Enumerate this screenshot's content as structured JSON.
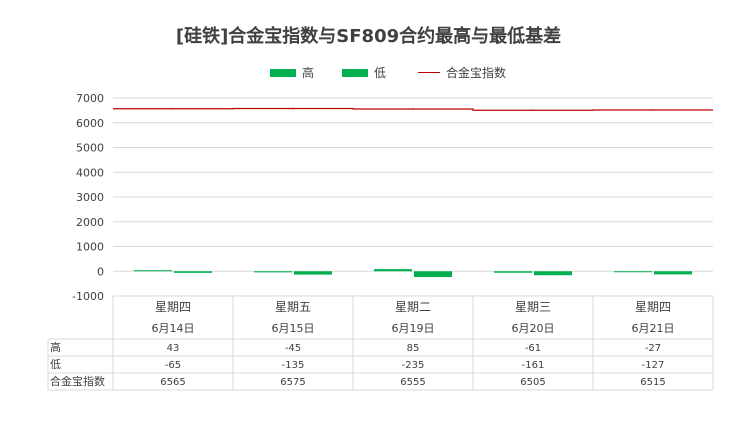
{
  "chart_data": {
    "type": "bar",
    "title": "[硅铁]合金宝指数与SF809合约最高与最低基差",
    "categories": [
      {
        "weekday": "星期四",
        "date": "6月14日"
      },
      {
        "weekday": "星期五",
        "date": "6月15日"
      },
      {
        "weekday": "星期二",
        "date": "6月19日"
      },
      {
        "weekday": "星期三",
        "date": "6月20日"
      },
      {
        "weekday": "星期四",
        "date": "6月21日"
      }
    ],
    "series": [
      {
        "name": "高",
        "type": "bar",
        "color": "#00b050",
        "values": [
          43,
          -45,
          85,
          -61,
          -27
        ]
      },
      {
        "name": "低",
        "type": "bar",
        "color": "#00b050",
        "values": [
          -65,
          -135,
          -235,
          -161,
          -127
        ]
      },
      {
        "name": "合金宝指数",
        "type": "line",
        "color": "#c00000",
        "values": [
          6565,
          6575,
          6555,
          6505,
          6515
        ]
      }
    ],
    "ylim": [
      -1000,
      7000
    ],
    "yticks": [
      7000,
      6000,
      5000,
      4000,
      3000,
      2000,
      1000,
      0,
      -1000
    ],
    "grid": true,
    "legend_position": "top"
  }
}
